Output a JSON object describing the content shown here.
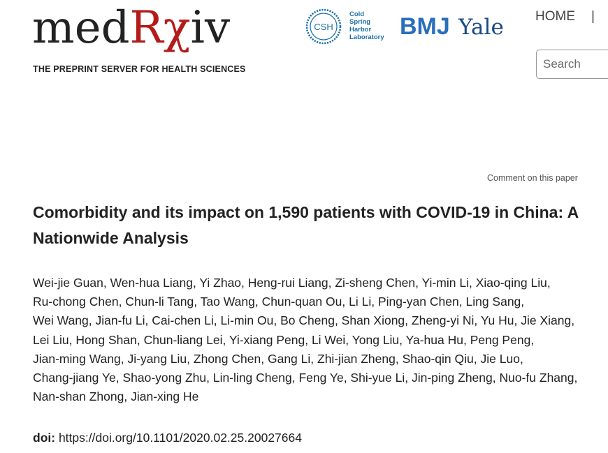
{
  "header": {
    "logo": {
      "prefix": "med",
      "rx": "Rχ",
      "suffix": "iv",
      "tagline": "THE PREPRINT SERVER FOR HEALTH SCIENCES"
    },
    "partners": {
      "csh_seal": "CSH",
      "csh_lines": [
        "Cold",
        "Spring",
        "Harbor",
        "Laboratory"
      ],
      "bmj": "BMJ",
      "yale": "Yale"
    },
    "nav": {
      "home": "HOME",
      "separator": "|"
    },
    "search": {
      "placeholder": "Search"
    }
  },
  "comment_link": "Comment on this paper",
  "paper": {
    "title": "Comorbidity and its impact on 1,590 patients with COVID-19 in China: A Nationwide Analysis",
    "authors": [
      "Wei-jie Guan",
      "Wen-hua Liang",
      "Yi Zhao",
      "Heng-rui Liang",
      "Zi-sheng Chen",
      "Yi-min Li",
      "Xiao-qing Liu",
      "Ru-chong Chen",
      "Chun-li Tang",
      "Tao Wang",
      "Chun-quan Ou",
      "Li Li",
      "Ping-yan Chen",
      "Ling Sang",
      "Wei Wang",
      "Jian-fu Li",
      "Cai-chen Li",
      "Li-min Ou",
      "Bo Cheng",
      "Shan Xiong",
      "Zheng-yi Ni",
      "Yu Hu",
      "Jie Xiang",
      "Lei Liu",
      "Hong Shan",
      "Chun-liang Lei",
      "Yi-xiang Peng",
      "Li Wei",
      "Yong Liu",
      "Ya-hua Hu",
      "Peng Peng",
      "Jian-ming Wang",
      "Ji-yang Liu",
      "Zhong Chen",
      "Gang Li",
      "Zhi-jian Zheng",
      "Shao-qin Qiu",
      "Jie Luo",
      "Chang-jiang Ye",
      "Shao-yong Zhu",
      "Lin-ling Cheng",
      "Feng Ye",
      "Shi-yue Li",
      "Jin-ping Zheng",
      "Nuo-fu Zhang",
      "Nan-shan Zhong",
      "Jian-xing He"
    ],
    "doi_label": "doi:",
    "doi_url": "https://doi.org/10.1101/2020.02.25.20027664"
  },
  "colors": {
    "brand_red": "#b31b1b",
    "bmj_blue": "#2a6ebb",
    "yale_blue": "#1a4a85",
    "csh_blue": "#1a6fa7"
  }
}
